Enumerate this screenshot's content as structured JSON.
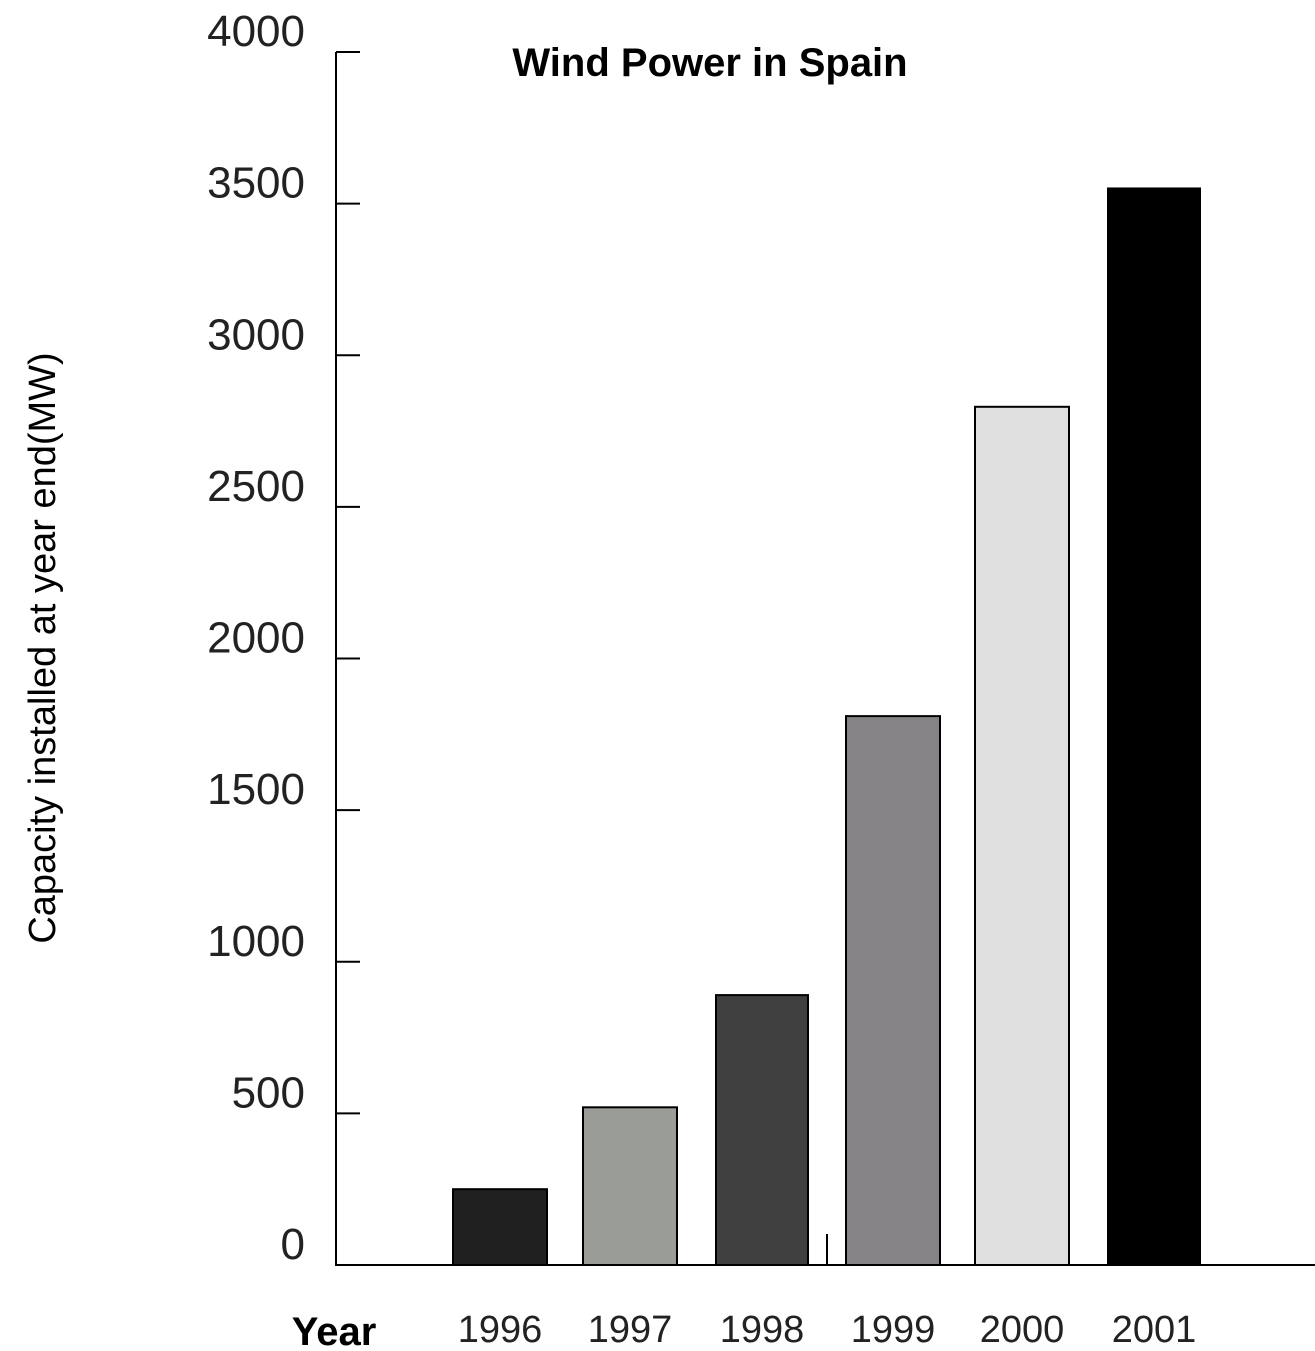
{
  "chart_data": {
    "type": "bar",
    "title": "Wind Power in Spain",
    "xlabel": "Year",
    "ylabel": "Capacity installed at year end(MW)",
    "categories": [
      "1996",
      "1997",
      "1998",
      "1999",
      "2000",
      "2001"
    ],
    "values": [
      250,
      520,
      890,
      1810,
      2830,
      3550
    ],
    "bar_colors": [
      "#202020",
      "#9a9c98",
      "#404040",
      "#858385",
      "#e0e0e0",
      "#000000"
    ],
    "ylim": [
      0,
      4000
    ],
    "yticks": [
      "0",
      "500",
      "1000",
      "1500",
      "2000",
      "2500",
      "3000",
      "3500",
      "4000"
    ],
    "grid": false,
    "legend": "none"
  }
}
